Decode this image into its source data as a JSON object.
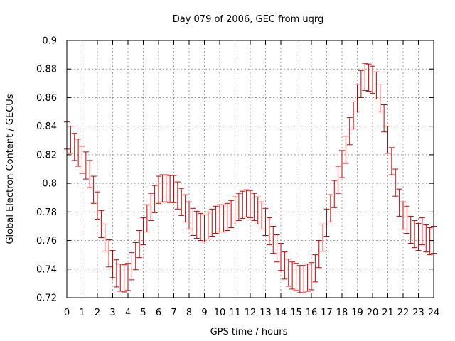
{
  "chart_data": {
    "type": "scatter",
    "title": "Day 079 of 2006, GEC from uqrg",
    "xlabel": "GPS time / hours",
    "ylabel": "Global Electron Content / GECUs",
    "xlim": [
      0,
      24
    ],
    "ylim": [
      0.72,
      0.9
    ],
    "xticks": [
      "0",
      "1",
      "2",
      "3",
      "4",
      "5",
      "6",
      "7",
      "8",
      "9",
      "10",
      "11",
      "12",
      "13",
      "14",
      "15",
      "16",
      "17",
      "18",
      "19",
      "20",
      "21",
      "22",
      "23",
      "24"
    ],
    "yticks": [
      "0.72",
      "0.74",
      "0.76",
      "0.78",
      "0.8",
      "0.82",
      "0.84",
      "0.86",
      "0.88",
      "0.9"
    ],
    "grid": true,
    "series_color": "#cc0000",
    "error_half_width": 0.0095,
    "series": [
      {
        "x": [
          0,
          0.25,
          0.5,
          0.75,
          1,
          1.25,
          1.5,
          1.75,
          2,
          2.25,
          2.5,
          2.75,
          3,
          3.25,
          3.5,
          3.75,
          4,
          4.25,
          4.5,
          4.75,
          5,
          5.25,
          5.5,
          5.75,
          6,
          6.25,
          6.5,
          6.75,
          7,
          7.25,
          7.5,
          7.75,
          8,
          8.25,
          8.5,
          8.75,
          9,
          9.25,
          9.5,
          9.75,
          10,
          10.25,
          10.5,
          10.75,
          11,
          11.25,
          11.5,
          11.75,
          12,
          12.25,
          12.5,
          12.75,
          13,
          13.25,
          13.5,
          13.75,
          14,
          14.25,
          14.5,
          14.75,
          15,
          15.25,
          15.5,
          15.75,
          16,
          16.25,
          16.5,
          16.75,
          17,
          17.25,
          17.5,
          17.75,
          18,
          18.25,
          18.5,
          18.75,
          19,
          19.25,
          19.5,
          19.75,
          20,
          20.25,
          20.5,
          20.75,
          21,
          21.25,
          21.5,
          21.75,
          22,
          22.25,
          22.5,
          22.75,
          23,
          23.25,
          23.5,
          23.75,
          24
        ],
        "y": [
          0.8335,
          0.8305,
          0.8255,
          0.8215,
          0.8165,
          0.8125,
          0.8065,
          0.7955,
          0.7845,
          0.7715,
          0.762,
          0.751,
          0.7435,
          0.737,
          0.734,
          0.7335,
          0.7345,
          0.742,
          0.749,
          0.7575,
          0.7665,
          0.7755,
          0.7835,
          0.789,
          0.7955,
          0.7965,
          0.7965,
          0.796,
          0.796,
          0.7915,
          0.787,
          0.7825,
          0.7775,
          0.773,
          0.771,
          0.7695,
          0.7685,
          0.7705,
          0.7725,
          0.7745,
          0.7755,
          0.7755,
          0.7765,
          0.7785,
          0.781,
          0.7835,
          0.785,
          0.786,
          0.7855,
          0.7835,
          0.781,
          0.7775,
          0.773,
          0.7665,
          0.7605,
          0.7545,
          0.7485,
          0.7425,
          0.7375,
          0.7355,
          0.7345,
          0.733,
          0.733,
          0.734,
          0.735,
          0.7405,
          0.7505,
          0.762,
          0.7725,
          0.7825,
          0.7925,
          0.8025,
          0.8135,
          0.8235,
          0.8365,
          0.8475,
          0.8595,
          0.8695,
          0.8745,
          0.874,
          0.8725,
          0.8685,
          0.8595,
          0.8455,
          0.8305,
          0.8155,
          0.8005,
          0.7865,
          0.7775,
          0.7745,
          0.7675,
          0.7645,
          0.7625,
          0.7665,
          0.7615,
          0.7595,
          0.7605
        ]
      }
    ]
  }
}
